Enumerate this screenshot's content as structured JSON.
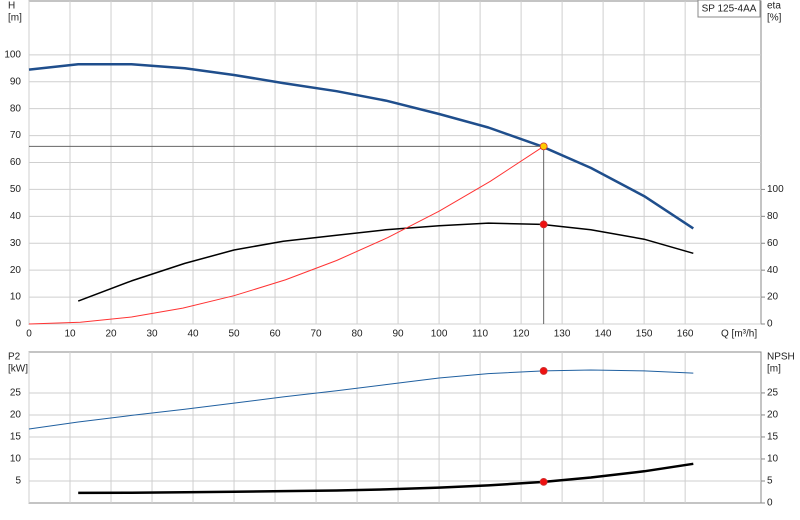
{
  "chart_data": [
    {
      "type": "line",
      "title": "SP 125-4AA",
      "ylabel": "H",
      "yunit": "[m]",
      "y2label": "eta",
      "y2unit": "[%]",
      "xlabel": "Q [m³/h]",
      "xlim": [
        0,
        178.5
      ],
      "xticks": [
        0,
        10,
        20,
        30,
        40,
        50,
        60,
        70,
        80,
        90,
        100,
        110,
        120,
        130,
        140,
        150,
        160
      ],
      "show_xtick_labels": true,
      "ylim": [
        0,
        120
      ],
      "yticks": [
        0,
        10,
        20,
        30,
        40,
        50,
        60,
        70,
        80,
        90,
        100
      ],
      "y2lim": [
        0,
        240
      ],
      "y2ticks": [
        0,
        20,
        40,
        60,
        80,
        100
      ],
      "grid": true,
      "series": [
        {
          "color": "#1f4e8c",
          "width": 2.5,
          "x": [
            0,
            12,
            25,
            38,
            50,
            62,
            75,
            87,
            100,
            112,
            125,
            137,
            150,
            162
          ],
          "values": [
            94.5,
            96.5,
            96.5,
            95,
            92.5,
            89.5,
            86.5,
            83,
            78,
            73,
            66,
            58,
            47.5,
            35.5
          ]
        },
        {
          "color": "#000000",
          "width": 1.5,
          "axis": "y2",
          "x": [
            12,
            25,
            38,
            50,
            62,
            75,
            87,
            100,
            112,
            125,
            137,
            150,
            162
          ],
          "values": [
            17,
            32,
            45,
            55,
            61.5,
            66,
            70,
            73,
            75,
            74,
            70,
            63,
            52.5
          ]
        },
        {
          "color": "#ff3333",
          "width": 1,
          "x": [
            0,
            12.5,
            25,
            37.5,
            50,
            62.5,
            75,
            87.5,
            100,
            112.5,
            125.5
          ],
          "values": [
            0,
            0.66,
            2.6,
            5.9,
            10.5,
            16.4,
            23.6,
            32.1,
            41.9,
            53,
            66
          ]
        },
        {
          "color": "#ffcc00",
          "marker": true,
          "guide": true,
          "x": [
            125.5
          ],
          "values": [
            66
          ]
        },
        {
          "color": "#ee1111",
          "marker": true,
          "axis": "y2",
          "x": [
            125.5
          ],
          "values": [
            74
          ]
        }
      ]
    },
    {
      "type": "line",
      "ylabel": "P2",
      "yunit": "[kW]",
      "y2label": "NPSH",
      "y2unit": "[m]",
      "xlim": [
        0,
        178.5
      ],
      "xticks": [
        0,
        10,
        20,
        30,
        40,
        50,
        60,
        70,
        80,
        90,
        100,
        110,
        120,
        130,
        140,
        150,
        160
      ],
      "show_xtick_labels": false,
      "ylim": [
        0,
        34.3
      ],
      "yticks": [
        5,
        10,
        15,
        20,
        25
      ],
      "y2lim": [
        0,
        34.3
      ],
      "y2ticks": [
        0,
        5,
        10,
        15,
        20,
        25
      ],
      "grid": true,
      "series": [
        {
          "color": "#2060a0",
          "width": 1,
          "x": [
            0,
            12,
            25,
            38,
            50,
            62,
            75,
            87,
            100,
            112,
            125.5,
            137,
            150,
            162
          ],
          "values": [
            16.8,
            18.4,
            19.9,
            21.3,
            22.7,
            24.1,
            25.5,
            26.9,
            28.4,
            29.4,
            30,
            30.2,
            30,
            29.5
          ]
        },
        {
          "color": "#000000",
          "width": 2.5,
          "axis": "y2",
          "x": [
            12,
            25,
            38,
            50,
            62,
            75,
            87,
            100,
            112,
            125.5,
            137,
            150,
            162
          ],
          "values": [
            2.3,
            2.35,
            2.45,
            2.55,
            2.7,
            2.85,
            3.1,
            3.5,
            4,
            4.8,
            5.8,
            7.2,
            8.9
          ]
        },
        {
          "color": "#ee1111",
          "marker": true,
          "x": [
            125.5
          ],
          "values": [
            30
          ]
        },
        {
          "color": "#ee1111",
          "marker": true,
          "axis": "y2",
          "x": [
            125.5
          ],
          "values": [
            4.8
          ]
        }
      ]
    }
  ]
}
